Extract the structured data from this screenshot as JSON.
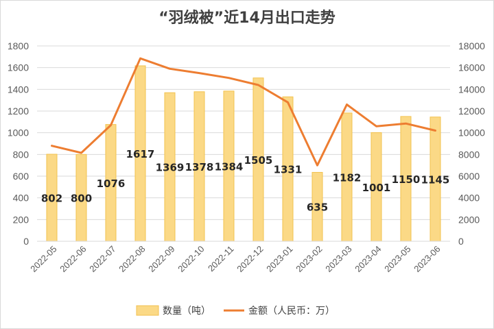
{
  "chart_data": {
    "type": "bar",
    "title": "“羽绒被”近14月出口走势",
    "categories": [
      "2022-05",
      "2022-06",
      "2022-07",
      "2022-08",
      "2022-09",
      "2022-10",
      "2022-11",
      "2022-12",
      "2023-01",
      "2023-02",
      "2023-03",
      "2023-04",
      "2023-05",
      "2023-06"
    ],
    "series": [
      {
        "name": "数量（吨）",
        "type": "bar",
        "axis": "left",
        "color": "#fbd986",
        "values": [
          802,
          800,
          1076,
          1617,
          1369,
          1378,
          1384,
          1505,
          1331,
          635,
          1182,
          1001,
          1150,
          1145
        ]
      },
      {
        "name": "金额（人民币：万）",
        "type": "line",
        "axis": "right",
        "color": "#ed7d31",
        "values": [
          8800,
          8150,
          10700,
          16850,
          15900,
          15500,
          15050,
          14400,
          12800,
          7000,
          12600,
          10600,
          10850,
          10200
        ]
      }
    ],
    "y_left": {
      "ylim": [
        0,
        1800
      ],
      "ticks": [
        "0",
        "200",
        "400",
        "600",
        "800",
        "1000",
        "1200",
        "1400",
        "1600",
        "1800"
      ]
    },
    "y_right": {
      "ylim": [
        0,
        18000
      ],
      "ticks": [
        "0",
        "2000",
        "4000",
        "6000",
        "8000",
        "10000",
        "12000",
        "14000",
        "16000",
        "18000"
      ]
    },
    "grid": true,
    "legend_position": "bottom"
  }
}
